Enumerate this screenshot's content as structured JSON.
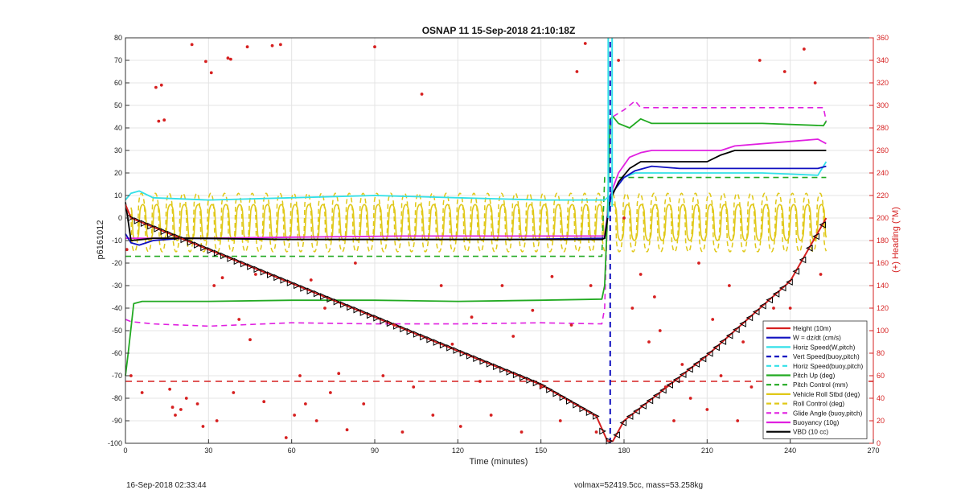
{
  "chart_data": {
    "type": "line",
    "title": "OSNAP 11 15-Sep-2018 21:10:18Z",
    "xlabel": "Time (minutes)",
    "ylabel": "p6161012",
    "y2label": "(+) Heading (°M)",
    "xlim": [
      0,
      270
    ],
    "ylim": [
      -100,
      80
    ],
    "y2lim": [
      0,
      360
    ],
    "xticks": [
      0,
      30,
      60,
      90,
      120,
      150,
      180,
      210,
      240,
      270
    ],
    "yticks": [
      -100,
      -90,
      -80,
      -70,
      -60,
      -50,
      -40,
      -30,
      -20,
      -10,
      0,
      10,
      20,
      30,
      40,
      50,
      60,
      70,
      80
    ],
    "y2ticks": [
      0,
      20,
      40,
      60,
      80,
      100,
      120,
      140,
      160,
      180,
      200,
      220,
      240,
      260,
      280,
      300,
      320,
      340,
      360
    ],
    "grid": true,
    "legend_position": "bottom-right",
    "colors": {
      "height": "#d62020",
      "w": "#1010c0",
      "horiz": "#33e0e8",
      "pitch": "#22aa22",
      "roll": "#e0c818",
      "glide": "#e020e0",
      "buoy": "#e020e0",
      "vbd": "#000000",
      "heading": "#d62020",
      "right_axis": "#d62020"
    },
    "legend": [
      {
        "label": "Height (10m)",
        "color": "#d62020",
        "style": "solid"
      },
      {
        "label": "W = dz/dt (cm/s)",
        "color": "#1010c0",
        "style": "solid"
      },
      {
        "label": "Horiz Speed(W,pitch)",
        "color": "#33e0e8",
        "style": "solid"
      },
      {
        "label": "Vert Speed(buoy,pitch)",
        "color": "#1010c0",
        "style": "dashed"
      },
      {
        "label": "Horiz Speed(buoy,pitch)",
        "color": "#33e0e8",
        "style": "dashed"
      },
      {
        "label": "Pitch Up (deg)",
        "color": "#22aa22",
        "style": "solid"
      },
      {
        "label": "Pitch Control (mm)",
        "color": "#22aa22",
        "style": "dashed"
      },
      {
        "label": "Vehicle Roll Stbd (deg)",
        "color": "#e0c818",
        "style": "solid"
      },
      {
        "label": "Roll Control (deg)",
        "color": "#e0c818",
        "style": "dashed"
      },
      {
        "label": "Glide Angle (buoy,pitch)",
        "color": "#e020e0",
        "style": "dashed"
      },
      {
        "label": "Buoyancy (10g)",
        "color": "#e020e0",
        "style": "solid"
      },
      {
        "label": "VBD (10 cc)",
        "color": "#000000",
        "style": "solid"
      }
    ],
    "series": {
      "height": {
        "x": [
          0,
          2,
          30,
          60,
          90,
          120,
          150,
          170,
          174,
          176,
          180,
          210,
          240,
          253
        ],
        "y": [
          6,
          0,
          -14,
          -29,
          -44,
          -59,
          -74,
          -88,
          -99,
          -99,
          -90,
          -61,
          -28,
          0
        ]
      },
      "w": {
        "x": [
          0,
          2,
          5,
          10,
          20,
          60,
          100,
          140,
          173,
          175,
          180,
          184,
          190,
          200,
          220,
          240,
          250,
          253
        ],
        "y": [
          -7,
          -11,
          -12,
          -10,
          -9,
          -9.5,
          -9.5,
          -9.5,
          -9,
          10,
          18,
          21,
          23,
          22,
          22,
          22,
          22,
          23
        ]
      },
      "horiz_speed_w_pitch": {
        "x": [
          0,
          2,
          5,
          10,
          30,
          60,
          90,
          120,
          150,
          170,
          173,
          175,
          180,
          184,
          190,
          210,
          230,
          250,
          253
        ],
        "y": [
          8,
          11,
          12,
          9,
          8,
          9,
          10,
          9,
          8,
          8,
          8,
          10,
          18,
          20,
          20,
          20,
          20,
          19,
          25
        ]
      },
      "pitch_up": {
        "x": [
          0,
          1,
          3,
          6,
          10,
          30,
          60,
          90,
          120,
          150,
          172,
          173,
          174,
          175,
          176,
          178,
          182,
          186,
          190,
          200,
          230,
          252,
          253
        ],
        "y": [
          -70,
          -60,
          -38,
          -37,
          -37,
          -37,
          -36.5,
          -36.5,
          -37,
          -36.5,
          -36,
          -30,
          0,
          44,
          45,
          42,
          40,
          44,
          42,
          42,
          42,
          41,
          43
        ]
      },
      "pitch_control": {
        "x": [
          0,
          2,
          172,
          173,
          253
        ],
        "y": [
          -17,
          -17,
          -17,
          18,
          18
        ]
      },
      "glide_angle": {
        "x": [
          0,
          2,
          10,
          30,
          60,
          90,
          120,
          150,
          172,
          173,
          174,
          175,
          176,
          180,
          184,
          186,
          190,
          230,
          252,
          253
        ],
        "y": [
          -45,
          -46,
          -47,
          -48,
          -46.5,
          -47,
          -47,
          -46.5,
          -47,
          -40,
          0,
          40,
          45,
          48,
          52,
          49,
          49,
          49,
          49,
          43
        ]
      },
      "buoyancy": {
        "x": [
          0,
          2,
          10,
          30,
          60,
          100,
          140,
          172,
          173,
          175,
          178,
          182,
          186,
          190,
          215,
          220,
          240,
          250,
          253
        ],
        "y": [
          -9,
          -9,
          -9,
          -9,
          -8.5,
          -8,
          -8,
          -8,
          -8,
          10,
          20,
          27,
          29,
          30,
          30,
          32,
          34,
          35,
          33
        ]
      },
      "vbd": {
        "x": [
          0,
          2,
          10,
          30,
          60,
          100,
          140,
          172,
          173,
          175,
          178,
          182,
          186,
          190,
          210,
          215,
          220,
          250,
          253
        ],
        "y": [
          7,
          -10,
          -9,
          -9,
          -9.5,
          -9.5,
          -9.5,
          -9.5,
          -9,
          8,
          16,
          22,
          25,
          25,
          25,
          28,
          30,
          30,
          30
        ]
      },
      "roll_bands": {
        "x_ranges": [
          [
            2,
            173
          ],
          [
            176,
            253
          ]
        ],
        "center": -2,
        "amplitude": 8,
        "period_minutes": 5
      },
      "roll_control_bands": {
        "x_ranges": [
          [
            2,
            173
          ],
          [
            176,
            253
          ]
        ],
        "center": -2,
        "amplitude": 13,
        "period_minutes": 5
      },
      "vert_speed_buoy_spike": {
        "x": [
          175,
          175
        ],
        "y": [
          -100,
          80
        ]
      },
      "horiz_speed_buoy_spike": {
        "x": [
          174.5,
          175.5
        ],
        "y": [
          80,
          80
        ]
      },
      "heading_reference": {
        "y2": 55
      },
      "heading_points": {
        "x": [
          0.5,
          2,
          6,
          11,
          12,
          13,
          14,
          16,
          17,
          18,
          20,
          22,
          24,
          26,
          28,
          29,
          31,
          32,
          33,
          35,
          37,
          38,
          39,
          41,
          44,
          45,
          47,
          50,
          53,
          56,
          58,
          61,
          63,
          65,
          67,
          69,
          72,
          74,
          77,
          80,
          83,
          86,
          90,
          93,
          97,
          100,
          104,
          107,
          111,
          114,
          118,
          121,
          125,
          128,
          132,
          136,
          140,
          143,
          147,
          150,
          154,
          157,
          161,
          163,
          166,
          168,
          170,
          178,
          180,
          183,
          186,
          189,
          191,
          193,
          195,
          198,
          201,
          204,
          207,
          210,
          212,
          215,
          218,
          221,
          223,
          226,
          229,
          231,
          234,
          236,
          238,
          240,
          242,
          245,
          247,
          249,
          251
        ],
        "y2": [
          172,
          60,
          45,
          316,
          286,
          318,
          287,
          48,
          32,
          25,
          30,
          40,
          354,
          35,
          15,
          339,
          329,
          140,
          20,
          147,
          342,
          341,
          45,
          110,
          352,
          92,
          150,
          37,
          353,
          354,
          5,
          25,
          60,
          35,
          145,
          20,
          120,
          45,
          62,
          12,
          160,
          35,
          352,
          60,
          105,
          10,
          50,
          310,
          25,
          140,
          88,
          15,
          112,
          55,
          25,
          140,
          95,
          10,
          118,
          50,
          148,
          20,
          105,
          330,
          355,
          140,
          10,
          340,
          200,
          120,
          150,
          90,
          130,
          100,
          50,
          20,
          70,
          40,
          160,
          30,
          110,
          60,
          140,
          20,
          90,
          50,
          340,
          15,
          120,
          80,
          330,
          120,
          40,
          350,
          75,
          320,
          150
        ]
      }
    }
  },
  "footer": {
    "left": "16-Sep-2018 02:33:44",
    "right": "volmax=52419.5cc, mass=53.258kg"
  }
}
